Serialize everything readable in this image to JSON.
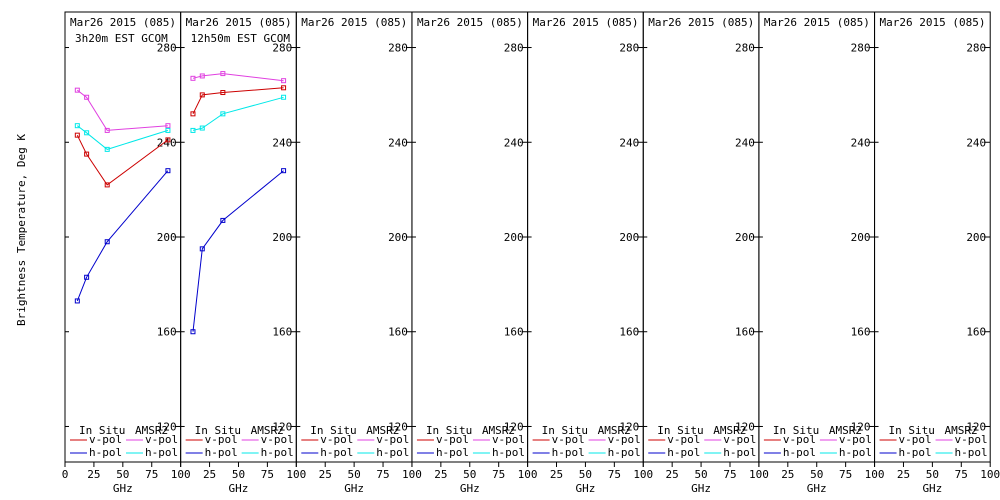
{
  "chart_data": {
    "type": "line",
    "ylabel": "Brightness Temperature, Deg K",
    "xlabel": "GHz",
    "x_ticks": [
      0,
      25,
      50,
      75,
      100
    ],
    "y_ticks": [
      120,
      160,
      200,
      240,
      280
    ],
    "xlim": [
      0,
      100
    ],
    "ylim": [
      105,
      295
    ],
    "legend": {
      "insitu_header": "In Situ",
      "amsr2_header": "AMSR2",
      "v_label": "v-pol",
      "h_label": "h-pol"
    },
    "colors": {
      "insitu_v": "#cc0000",
      "insitu_h": "#0000cc",
      "amsr2_v": "#e040e0",
      "amsr2_h": "#00e8e8"
    },
    "panels": [
      {
        "date": "Mar26 2015 (085)",
        "time": "3h20m EST GCOM",
        "series": [
          {
            "key": "insitu_v",
            "x": [
              10.65,
              18.7,
              36.5,
              89
            ],
            "y": [
              243,
              235,
              222,
              241
            ]
          },
          {
            "key": "insitu_h",
            "x": [
              10.65,
              18.7,
              36.5,
              89
            ],
            "y": [
              173,
              183,
              198,
              228
            ]
          },
          {
            "key": "amsr2_v",
            "x": [
              10.65,
              18.7,
              36.5,
              89
            ],
            "y": [
              262,
              259,
              245,
              247
            ]
          },
          {
            "key": "amsr2_h",
            "x": [
              10.65,
              18.7,
              36.5,
              89
            ],
            "y": [
              247,
              244,
              237,
              245
            ]
          }
        ]
      },
      {
        "date": "Mar26 2015 (085)",
        "time": "12h50m EST GCOM",
        "series": [
          {
            "key": "insitu_v",
            "x": [
              10.65,
              18.7,
              36.5,
              89
            ],
            "y": [
              252,
              260,
              261,
              263
            ]
          },
          {
            "key": "insitu_h",
            "x": [
              10.65,
              18.7,
              36.5,
              89
            ],
            "y": [
              160,
              195,
              207,
              228
            ]
          },
          {
            "key": "amsr2_v",
            "x": [
              10.65,
              18.7,
              36.5,
              89
            ],
            "y": [
              267,
              268,
              269,
              266
            ]
          },
          {
            "key": "amsr2_h",
            "x": [
              10.65,
              18.7,
              36.5,
              89
            ],
            "y": [
              245,
              246,
              252,
              259
            ]
          }
        ]
      },
      {
        "date": "Mar26 2015 (085)",
        "time": "",
        "series": []
      },
      {
        "date": "Mar26 2015 (085)",
        "time": "",
        "series": []
      },
      {
        "date": "Mar26 2015 (085)",
        "time": "",
        "series": []
      },
      {
        "date": "Mar26 2015 (085)",
        "time": "",
        "series": []
      },
      {
        "date": "Mar26 2015 (085)",
        "time": "",
        "series": []
      },
      {
        "date": "Mar26 2015 (085)",
        "time": "",
        "series": []
      }
    ]
  }
}
